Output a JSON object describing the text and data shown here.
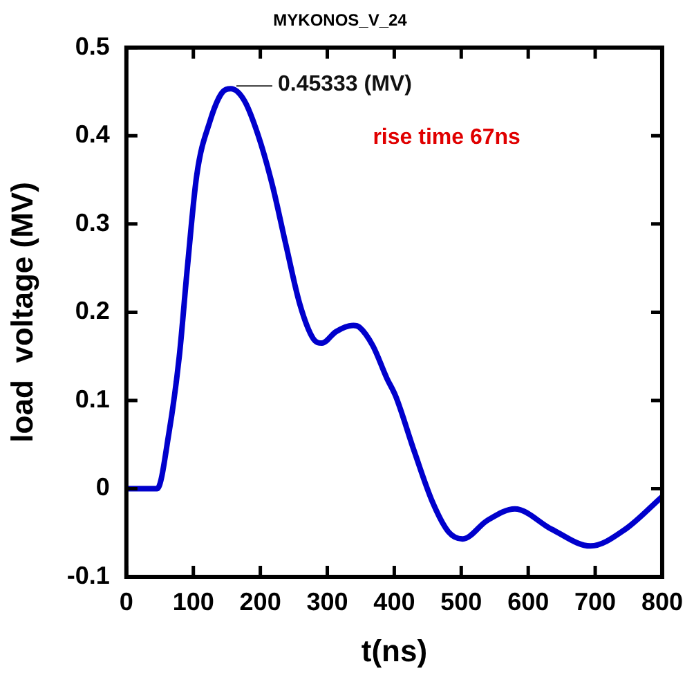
{
  "chart_data": {
    "type": "line",
    "title": "MYKONOS_V_24",
    "xlabel": "t(ns)",
    "ylabel": "load  voltage (MV)",
    "x": [
      0,
      46,
      63.5,
      79,
      91,
      105,
      125,
      142,
      156,
      176,
      197,
      218,
      238,
      259,
      279,
      292,
      313,
      339,
      348,
      368,
      389,
      402,
      430,
      457,
      481,
      502,
      539,
      580,
      635,
      693,
      745,
      800
    ],
    "series": [
      {
        "color": "#0000cc",
        "values": [
          0,
          0,
          0.063,
          0.15,
          0.25,
          0.355,
          0.417,
          0.448,
          0.45333,
          0.44,
          0.4,
          0.344,
          0.277,
          0.209,
          0.17,
          0.165,
          0.178,
          0.185,
          0.183,
          0.162,
          0.125,
          0.105,
          0.042,
          -0.015,
          -0.049,
          -0.057,
          -0.036,
          -0.023,
          -0.046,
          -0.065,
          -0.046,
          -0.009
        ]
      }
    ],
    "xlim": [
      0,
      800
    ],
    "xticks": [
      0,
      100,
      200,
      300,
      400,
      500,
      600,
      700,
      800
    ],
    "ylim": [
      -0.1,
      0.5
    ],
    "yticks": [
      -0.1,
      0,
      0.1,
      0.2,
      0.3,
      0.4,
      0.5
    ],
    "annotations": [
      {
        "text": "0.45333 (MV)",
        "x": 156,
        "y": 0.45333
      },
      "rise time 67ns"
    ],
    "grid": false,
    "legend": false,
    "marker": "none",
    "line_style": "solid"
  }
}
